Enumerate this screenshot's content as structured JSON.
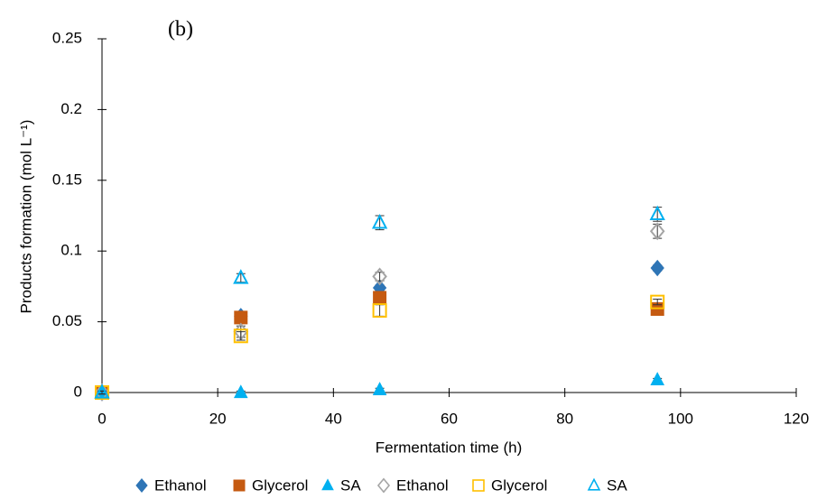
{
  "chart_data": {
    "type": "scatter",
    "annotation": "(b)",
    "xlabel": "Fermentation time (h)",
    "ylabel": "Products formation (mol L⁻¹)",
    "xlim": [
      0,
      120
    ],
    "xticks": [
      0,
      20,
      40,
      60,
      80,
      100,
      120
    ],
    "ylim": [
      0,
      0.25
    ],
    "yticks": [
      0,
      0.05,
      0.1,
      0.15,
      0.2,
      0.25
    ],
    "series": [
      {
        "name": "Ethanol",
        "color": "#2e75b6",
        "marker": "diamond",
        "filled": true,
        "x": [
          0,
          24,
          48,
          96
        ],
        "values": [
          0,
          0.054,
          0.074,
          0.088
        ],
        "errors": [
          0.001,
          0.002,
          0.002,
          0.002
        ]
      },
      {
        "name": "Glycerol",
        "color": "#c55a11",
        "marker": "square",
        "filled": true,
        "x": [
          0,
          24,
          48,
          96
        ],
        "values": [
          0,
          0.053,
          0.067,
          0.059
        ],
        "errors": [
          0.001,
          0.002,
          0.003,
          0.002
        ]
      },
      {
        "name": "SA",
        "color": "#00b0f0",
        "marker": "triangle",
        "filled": true,
        "x": [
          0,
          24,
          48,
          96
        ],
        "values": [
          0,
          0,
          0.002,
          0.009
        ],
        "errors": [
          0.001,
          0.001,
          0.001,
          0.001
        ]
      },
      {
        "name": "Ethanol",
        "color": "#a5a5a5",
        "marker": "diamond",
        "filled": false,
        "x": [
          0,
          24,
          48,
          96
        ],
        "values": [
          0,
          0.043,
          0.082,
          0.114
        ],
        "errors": [
          0.001,
          0.004,
          0.003,
          0.005
        ]
      },
      {
        "name": "Glycerol",
        "color": "#ffc000",
        "marker": "square",
        "filled": false,
        "x": [
          0,
          24,
          48,
          96
        ],
        "values": [
          0,
          0.04,
          0.058,
          0.064
        ],
        "errors": [
          0.001,
          0.003,
          0.004,
          0.002
        ]
      },
      {
        "name": "SA",
        "color": "#00b0f0",
        "marker": "triangle",
        "filled": false,
        "x": [
          0,
          24,
          48,
          96
        ],
        "values": [
          0,
          0.081,
          0.12,
          0.126
        ],
        "errors": [
          0.001,
          0.003,
          0.005,
          0.005
        ]
      }
    ]
  }
}
